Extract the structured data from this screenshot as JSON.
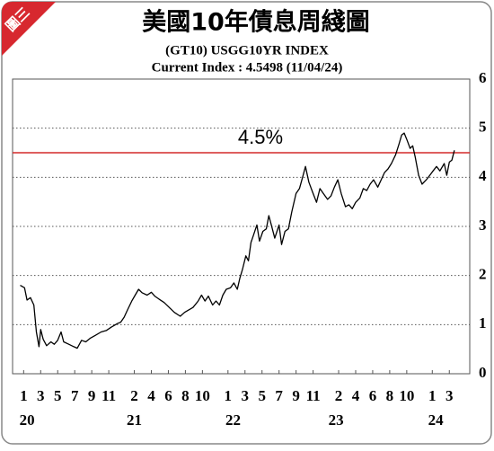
{
  "chart_data": {
    "type": "line",
    "badge": "圖三",
    "title": "美國10年債息周綫圖",
    "subtitle": "(GT10) USGG10YR INDEX",
    "subtitle2": "Current Index : 4.5498 (11/04/24)",
    "x": [
      -0.4,
      0.1,
      0.4,
      0.8,
      1.2,
      1.5,
      1.8,
      2.0,
      2.3,
      2.7,
      3.2,
      3.6,
      4.0,
      4.4,
      4.7,
      5.3,
      5.9,
      6.3,
      6.8,
      7.3,
      7.8,
      8.4,
      9.1,
      9.7,
      10.3,
      11.0,
      11.4,
      11.8,
      12.2,
      12.7,
      13.1,
      13.5,
      13.9,
      14.5,
      15.0,
      15.4,
      15.9,
      16.5,
      17.1,
      17.7,
      18.4,
      18.9,
      19.4,
      19.9,
      20.5,
      20.9,
      21.3,
      21.7,
      22.2,
      22.6,
      23.0,
      23.4,
      23.8,
      24.3,
      24.7,
      25.1,
      25.4,
      25.7,
      26.1,
      26.4,
      26.7,
      27.0,
      27.4,
      27.7,
      28.1,
      28.5,
      28.8,
      29.1,
      29.5,
      30.0,
      30.3,
      30.7,
      31.1,
      31.5,
      32.0,
      32.4,
      32.8,
      33.1,
      33.5,
      34.0,
      34.4,
      34.8,
      35.2,
      35.7,
      36.1,
      36.5,
      36.9,
      37.3,
      37.8,
      38.2,
      38.6,
      39.0,
      39.5,
      39.9,
      40.3,
      40.7,
      41.1,
      41.6,
      42.0,
      42.4,
      42.8,
      43.2,
      43.7,
      44.1,
      44.4,
      44.7,
      45.0,
      45.4,
      45.7,
      46.0,
      46.4,
      46.8,
      47.3,
      47.7,
      48.1,
      48.5,
      48.9,
      49.4,
      49.7,
      50.0,
      50.3,
      50.6
    ],
    "values": [
      1.8,
      1.75,
      1.5,
      1.55,
      1.4,
      0.85,
      0.55,
      0.9,
      0.7,
      0.57,
      0.65,
      0.6,
      0.68,
      0.85,
      0.65,
      0.6,
      0.55,
      0.52,
      0.68,
      0.65,
      0.72,
      0.78,
      0.85,
      0.88,
      0.95,
      1.02,
      1.05,
      1.15,
      1.3,
      1.48,
      1.6,
      1.72,
      1.65,
      1.6,
      1.66,
      1.58,
      1.52,
      1.45,
      1.35,
      1.25,
      1.17,
      1.25,
      1.3,
      1.35,
      1.48,
      1.6,
      1.48,
      1.58,
      1.4,
      1.48,
      1.4,
      1.6,
      1.72,
      1.75,
      1.85,
      1.72,
      1.95,
      2.12,
      2.4,
      2.3,
      2.67,
      2.82,
      3.03,
      2.7,
      2.9,
      2.95,
      3.22,
      3.03,
      2.76,
      3.03,
      2.63,
      2.9,
      2.95,
      3.3,
      3.67,
      3.77,
      4.02,
      4.22,
      3.9,
      3.67,
      3.49,
      3.77,
      3.67,
      3.55,
      3.62,
      3.8,
      3.95,
      3.67,
      3.4,
      3.44,
      3.36,
      3.49,
      3.58,
      3.77,
      3.73,
      3.86,
      3.95,
      3.8,
      3.95,
      4.1,
      4.17,
      4.28,
      4.46,
      4.68,
      4.86,
      4.9,
      4.77,
      4.59,
      4.64,
      4.41,
      4.04,
      3.86,
      3.95,
      4.04,
      4.13,
      4.22,
      4.13,
      4.28,
      4.04,
      4.31,
      4.35,
      4.55
    ],
    "color": "#000000",
    "xlim": [
      -1.3,
      52.4
    ],
    "xticks": [
      {
        "value": 0,
        "label": "1"
      },
      {
        "value": 2,
        "label": "3"
      },
      {
        "value": 4,
        "label": "5"
      },
      {
        "value": 6,
        "label": "7"
      },
      {
        "value": 8,
        "label": "9"
      },
      {
        "value": 10,
        "label": "11"
      },
      {
        "value": 13,
        "label": "2"
      },
      {
        "value": 15,
        "label": "4"
      },
      {
        "value": 17,
        "label": "6"
      },
      {
        "value": 19,
        "label": "8"
      },
      {
        "value": 21,
        "label": "10"
      },
      {
        "value": 24,
        "label": "1"
      },
      {
        "value": 26,
        "label": "3"
      },
      {
        "value": 28,
        "label": "5"
      },
      {
        "value": 30,
        "label": "7"
      },
      {
        "value": 32,
        "label": "9"
      },
      {
        "value": 34,
        "label": "11"
      },
      {
        "value": 37,
        "label": "2"
      },
      {
        "value": 39,
        "label": "4"
      },
      {
        "value": 41,
        "label": "6"
      },
      {
        "value": 43,
        "label": "8"
      },
      {
        "value": 45,
        "label": "10"
      },
      {
        "value": 48,
        "label": "1"
      },
      {
        "value": 50,
        "label": "3"
      }
    ],
    "year_labels": [
      {
        "value": 0.4,
        "label": "20"
      },
      {
        "value": 13,
        "label": "21"
      },
      {
        "value": 24.6,
        "label": "22"
      },
      {
        "value": 36.7,
        "label": "23"
      },
      {
        "value": 48.4,
        "label": "24"
      }
    ],
    "ylim": [
      0,
      6
    ],
    "yticks": [
      0,
      1,
      2,
      3,
      4,
      5,
      6
    ],
    "grid": true,
    "reference_line": {
      "value": 4.5,
      "label": "4.5%",
      "color": "#d42a2a"
    }
  }
}
